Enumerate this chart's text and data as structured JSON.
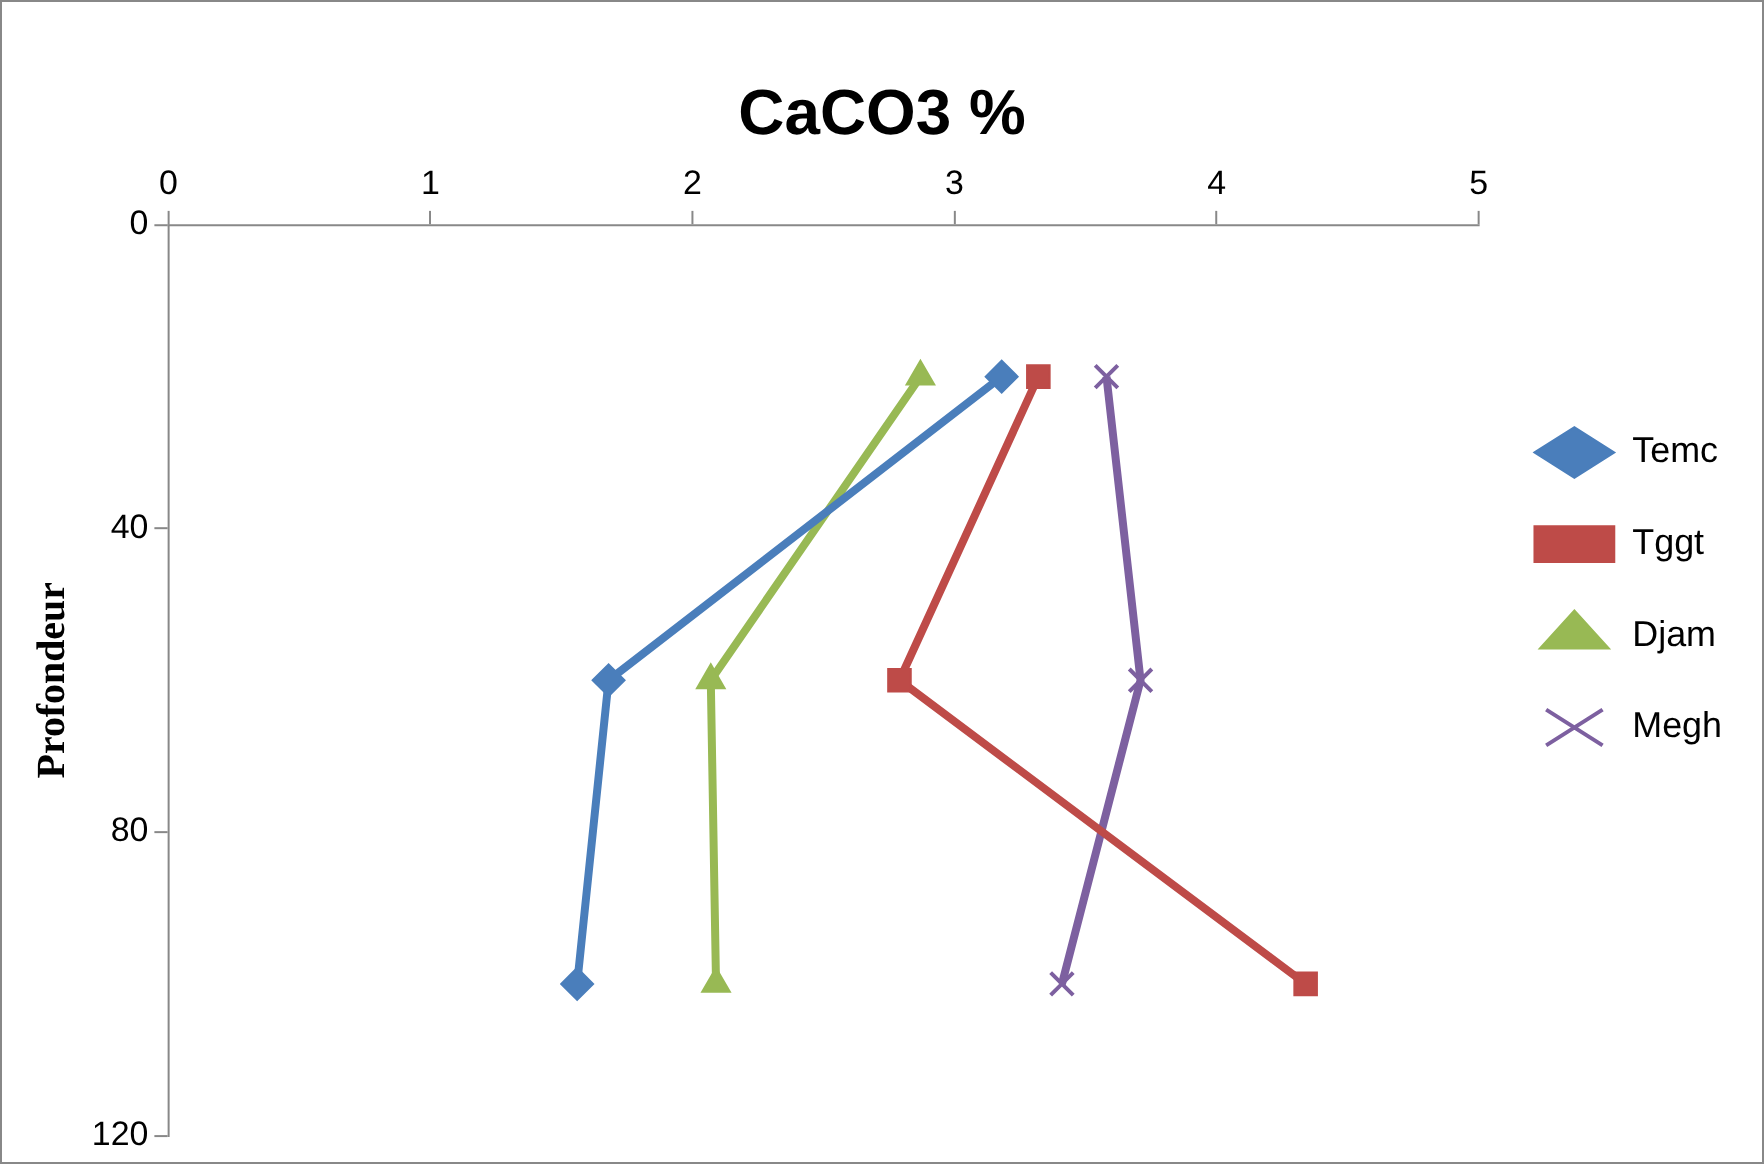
{
  "chart_data": {
    "type": "line",
    "title": "CaCO3 %",
    "ylabel": "Profondeur",
    "xlim": [
      0,
      5
    ],
    "xticks": [
      0,
      1,
      2,
      3,
      4,
      5
    ],
    "ylim": [
      120,
      0
    ],
    "yticks": [
      0,
      40,
      80,
      120
    ],
    "grid": false,
    "legend": "right",
    "line_style": "solid",
    "series": [
      {
        "name": "Temc",
        "color": "#4a7ebb",
        "marker": "diamond",
        "x": [
          3.18,
          1.68,
          1.56
        ],
        "values": [
          20,
          60,
          100
        ]
      },
      {
        "name": "Tggt",
        "color": "#be4b48",
        "marker": "square",
        "x": [
          3.32,
          2.79,
          4.34
        ],
        "values": [
          20,
          60,
          100
        ]
      },
      {
        "name": "Djam",
        "color": "#98b954",
        "marker": "triangle",
        "x": [
          2.87,
          2.07,
          2.09
        ],
        "values": [
          20,
          60,
          100
        ]
      },
      {
        "name": "Megh",
        "color": "#7d60a0",
        "marker": "cross",
        "x": [
          3.58,
          3.71,
          3.41
        ],
        "values": [
          20,
          60,
          100
        ]
      }
    ]
  }
}
